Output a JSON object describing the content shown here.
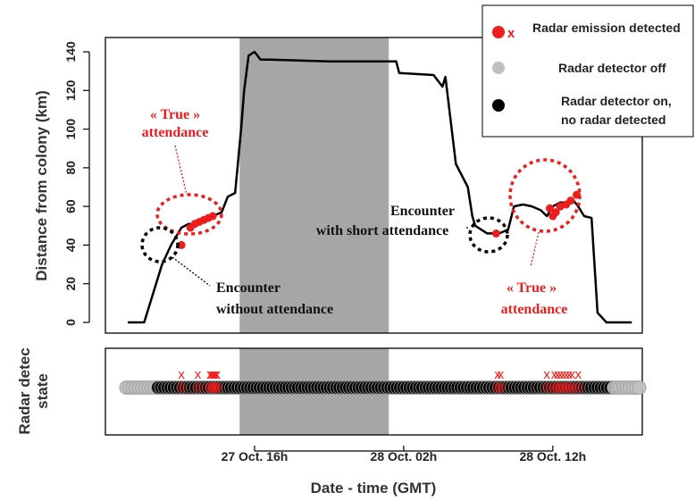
{
  "chart_data": {
    "type": "line",
    "y_axis_label": "Distance from colony (km)",
    "x_axis_label": "Date - time (GMT)",
    "lower_panel_label_line1": "Radar detec",
    "lower_panel_label_line2": "state",
    "ylim": [
      0,
      140
    ],
    "yticks": [
      0,
      20,
      40,
      60,
      80,
      100,
      120,
      140
    ],
    "xlim": [
      -10,
      26
    ],
    "xticks": [
      {
        "value": 0,
        "label": "27 Oct. 16h"
      },
      {
        "value": 10,
        "label": "28 Oct. 02h"
      },
      {
        "value": 20,
        "label": "28 Oct. 12h"
      }
    ],
    "x_unit": "hours since 27 Oct. 16h GMT",
    "shaded_interval": [
      -1,
      9
    ],
    "track": {
      "x": [
        -8.5,
        -7.4,
        -6.8,
        -6.2,
        -5.6,
        -4.9,
        -4.4,
        -4.0,
        -3.4,
        -2.8,
        -2.2,
        -1.8,
        -1.3,
        -0.9,
        -0.7,
        -0.4,
        0.0,
        0.4,
        1,
        5,
        9.5,
        9.7,
        12,
        12.6,
        12.8,
        13.5,
        14.3,
        14.6,
        14.8,
        15.6,
        16.4,
        17.0,
        17.4,
        18.0,
        18.6,
        19.2,
        19.6,
        20.0,
        20.5,
        21.0,
        21.3,
        21.7,
        22.1,
        22.6,
        23.0,
        23.6,
        24.3,
        25.3
      ],
      "y": [
        0,
        0,
        15,
        30,
        40,
        49,
        51,
        50,
        54,
        55,
        57,
        65,
        67,
        100,
        120,
        138,
        140,
        136,
        136,
        135,
        135,
        129,
        128,
        122,
        127,
        82,
        70,
        55,
        50,
        46,
        46,
        48,
        60,
        61,
        60,
        58,
        55,
        60,
        62,
        62,
        64,
        60,
        55,
        54,
        5,
        0,
        0,
        0
      ]
    },
    "red_points": {
      "x": [
        -4.9,
        -4.3,
        -4.0,
        -3.7,
        -3.4,
        -3.1,
        -2.8,
        16.2,
        19.8,
        20.0,
        20.2,
        20.5,
        20.9,
        21.2,
        21.6
      ],
      "y": [
        40,
        49,
        51,
        52,
        53,
        54,
        55,
        46,
        59,
        55,
        57,
        60,
        61,
        63,
        66
      ]
    },
    "radar_x_marks": [
      -4.9,
      -3.8,
      -3.0,
      -2.9,
      -2.8,
      -2.7,
      -2.6,
      -2.5,
      16.3,
      16.5,
      19.6,
      20.1,
      20.3,
      20.5,
      20.7,
      20.9,
      21.1,
      21.3,
      21.7
    ],
    "radar_state_points": {
      "x_start": -8.6,
      "x_end": 25.8,
      "count": 162,
      "off_before": -6.5,
      "off_after": 24.0
    },
    "legend": [
      {
        "label": "Radar emission detected",
        "marker": "red-dot-and-x",
        "color": "#ee1c1c"
      },
      {
        "label": "Radar detector off",
        "marker": "dot",
        "color": "#c0c0c0"
      },
      {
        "label_line1": "Radar detector on,",
        "label_line2": "no radar detected",
        "marker": "dot",
        "color": "#000000"
      }
    ],
    "annotations": {
      "true_attendance_left_line1": "« True »",
      "true_attendance_left_line2": "attendance",
      "encounter_without_line1": "Encounter",
      "encounter_without_line2": "without attendance",
      "encounter_short_line1": "Encounter",
      "encounter_short_line2": "with short attendance",
      "true_attendance_right_line1": "« True »",
      "true_attendance_right_line2": "attendance"
    },
    "colors": {
      "track": "#000000",
      "emission": "#ee1c1c",
      "shading": "#a6a6a6",
      "off": "#c0c0c0",
      "on": "#000000"
    }
  }
}
